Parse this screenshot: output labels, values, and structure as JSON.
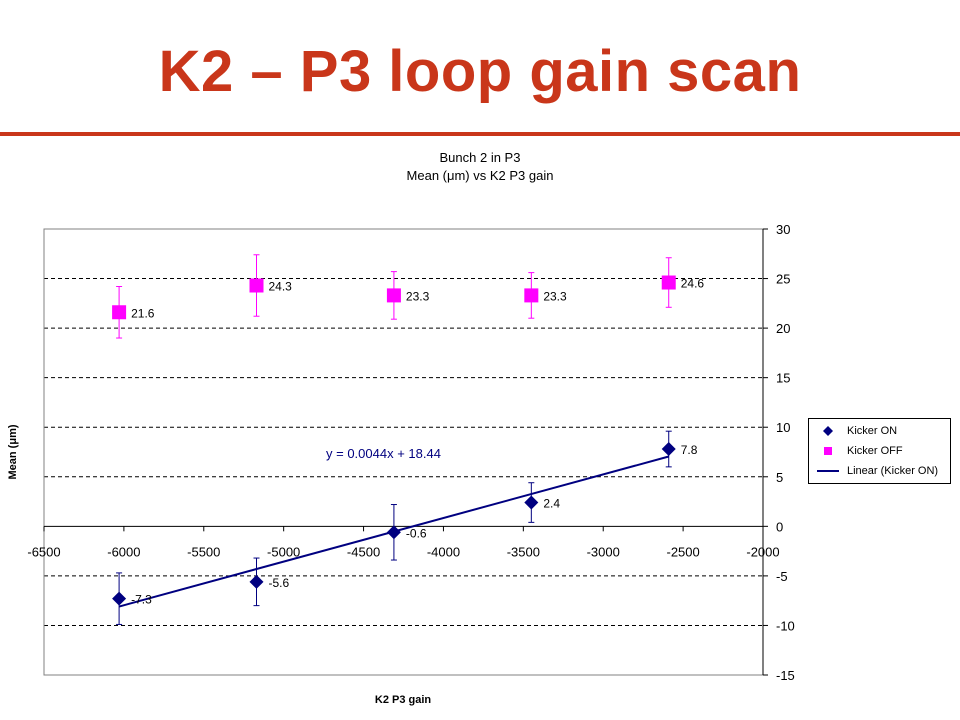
{
  "slide": {
    "title": "K2 – P3 loop gain scan"
  },
  "chart_data": {
    "type": "scatter",
    "title": "Bunch 2 in P3",
    "subtitle": "Mean (μm) vs K2 P3 gain",
    "xlabel": "K2 P3 gain",
    "ylabel": "Mean (μm)",
    "xlim": [
      -6500,
      -2000
    ],
    "ylim": [
      -15,
      30
    ],
    "xticks": [
      -6500,
      -6000,
      -5500,
      -5000,
      -4500,
      -4000,
      -3500,
      -3000,
      -2500,
      -2000
    ],
    "yticks": [
      30,
      25,
      20,
      15,
      10,
      5,
      0,
      -5,
      -10,
      -15
    ],
    "grid": "horizontal dashed",
    "legend_position": "right",
    "series": [
      {
        "name": "Kicker ON",
        "marker": "diamond",
        "color": "#000080",
        "points": [
          {
            "x": -6030,
            "y": -7.3,
            "err": 2.6,
            "label": "-7.3"
          },
          {
            "x": -5170,
            "y": -5.6,
            "err": 2.4,
            "label": "-5.6"
          },
          {
            "x": -4310,
            "y": -0.6,
            "err": 2.8,
            "label": "-0.6"
          },
          {
            "x": -3450,
            "y": 2.4,
            "err": 2.0,
            "label": "2.4"
          },
          {
            "x": -2590,
            "y": 7.8,
            "err": 1.8,
            "label": "7.8"
          }
        ]
      },
      {
        "name": "Kicker OFF",
        "marker": "square",
        "color": "#ff00ff",
        "points": [
          {
            "x": -6030,
            "y": 21.6,
            "err": 2.6,
            "label": "21.6"
          },
          {
            "x": -5170,
            "y": 24.3,
            "err": 3.1,
            "label": "24.3"
          },
          {
            "x": -4310,
            "y": 23.3,
            "err": 2.4,
            "label": "23.3"
          },
          {
            "x": -3450,
            "y": 23.3,
            "err": 2.3,
            "label": "23.3"
          },
          {
            "x": -2590,
            "y": 24.6,
            "err": 2.5,
            "label": "24.6"
          }
        ]
      }
    ],
    "trendline": {
      "name": "Linear (Kicker ON)",
      "slope": 0.0044,
      "intercept": 18.44,
      "x_range": [
        -6030,
        -2590
      ],
      "color": "#000080",
      "equation": "y = 0.0044x + 18.44"
    }
  }
}
